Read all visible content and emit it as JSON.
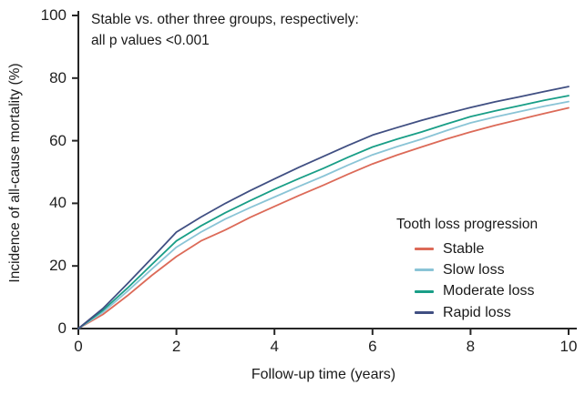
{
  "figure": {
    "annotation_line1": "Stable vs. other three groups, respectively:",
    "annotation_line2": "all p values <0.001",
    "y_axis_label": "Incidence of all-cause mortality (%)",
    "x_axis_label": "Follow-up time (years)"
  },
  "legend": {
    "title": "Tooth loss progression",
    "items": [
      "Stable",
      "Slow loss",
      "Moderate loss",
      "Rapid loss"
    ]
  },
  "colors": {
    "axis": "#262626",
    "text": "#1a1a1a",
    "stable": "#DC6A58",
    "slow_loss": "#8AC4D6",
    "moderate_loss": "#199E87",
    "rapid_loss": "#404F82"
  },
  "chart_data": {
    "type": "line",
    "title": "",
    "xlabel": "Follow-up time (years)",
    "ylabel": "Incidence of all-cause mortality (%)",
    "xlim": [
      0,
      10
    ],
    "ylim": [
      0,
      100
    ],
    "x_ticks": [
      0,
      2,
      4,
      6,
      8,
      10
    ],
    "y_ticks": [
      0,
      20,
      40,
      60,
      80,
      100
    ],
    "grid": false,
    "legend_title": "Tooth loss progression",
    "legend_position": "lower-right",
    "annotation": "Stable vs. other three groups, respectively: all p values <0.001",
    "x": [
      0,
      0.5,
      1,
      1.5,
      2,
      2.5,
      3,
      3.5,
      4,
      4.5,
      5,
      5.5,
      6,
      6.5,
      7,
      7.5,
      8,
      8.5,
      9,
      9.5,
      10
    ],
    "series": [
      {
        "name": "Stable",
        "color": "#DC6A58",
        "values": [
          0,
          4.5,
          10.5,
          17,
          23,
          28,
          31.5,
          35.5,
          39,
          42.5,
          45.8,
          49.3,
          52.6,
          55.4,
          58,
          60.5,
          62.8,
          64.9,
          66.8,
          68.7,
          70.5
        ]
      },
      {
        "name": "Slow loss",
        "color": "#8AC4D6",
        "values": [
          0,
          5.2,
          11.9,
          19,
          26,
          30.8,
          35,
          38.6,
          42,
          45.4,
          48.7,
          52.2,
          55.5,
          58.1,
          60.5,
          63.2,
          65.7,
          67.6,
          69.3,
          71,
          72.5
        ]
      },
      {
        "name": "Moderate loss",
        "color": "#199E87",
        "values": [
          0,
          5.8,
          12.9,
          20.5,
          28,
          32.8,
          37,
          40.8,
          44.5,
          47.9,
          51.2,
          54.7,
          58,
          60.5,
          62.8,
          65.3,
          67.7,
          69.5,
          71.2,
          72.9,
          74.4
        ]
      },
      {
        "name": "Rapid loss",
        "color": "#404F82",
        "values": [
          0,
          6.4,
          14.3,
          22.5,
          30.8,
          35.6,
          40,
          44,
          47.8,
          51.5,
          55,
          58.5,
          61.8,
          64.2,
          66.5,
          68.6,
          70.6,
          72.4,
          74,
          75.7,
          77.3
        ]
      }
    ]
  }
}
